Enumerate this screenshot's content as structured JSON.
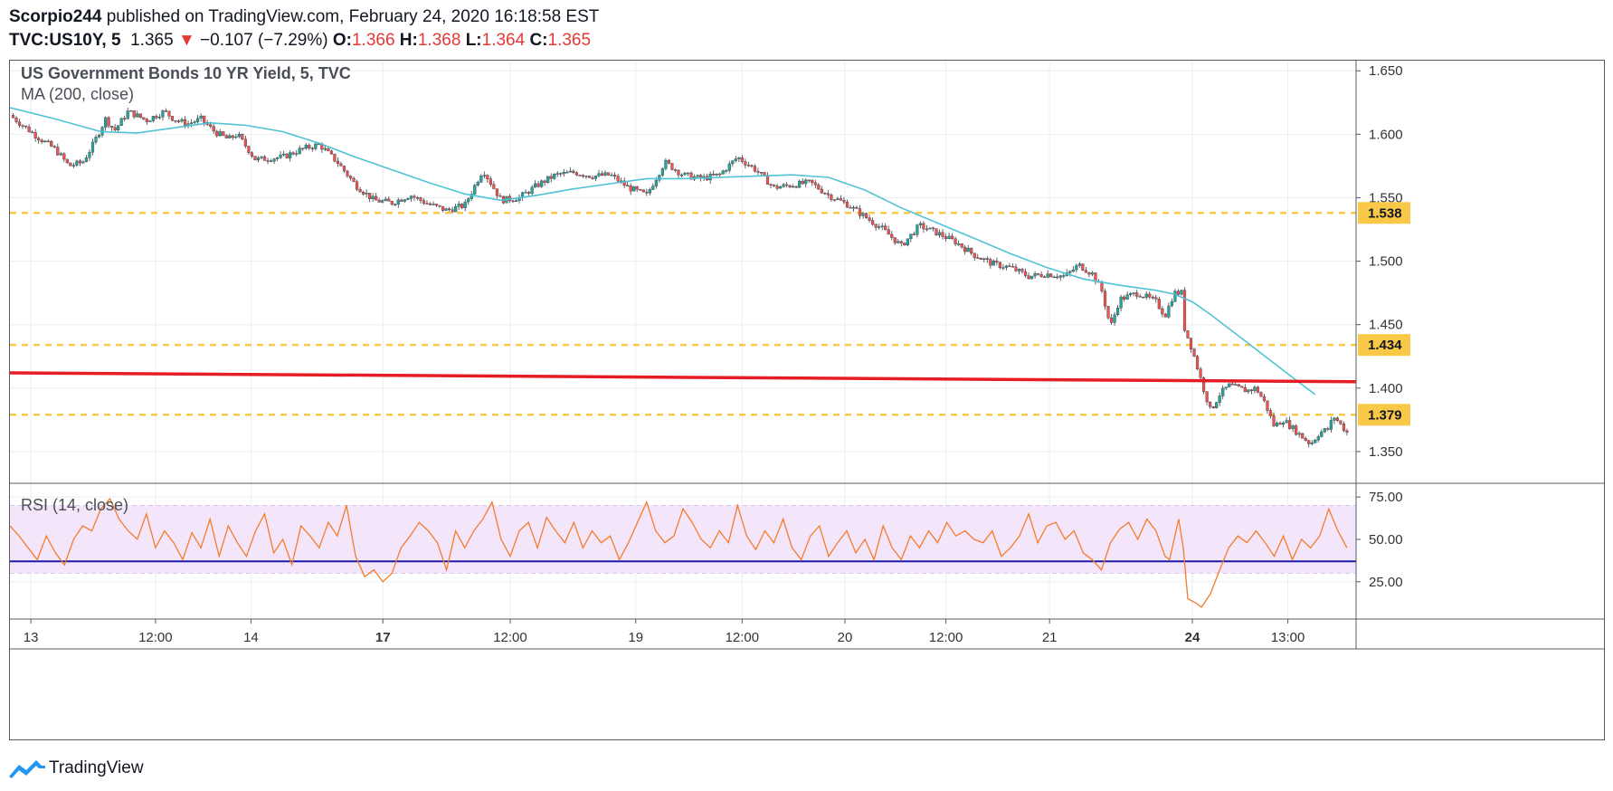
{
  "header": {
    "author": "Scorpio244",
    "published_text": "published on TradingView.com, February 24, 2020 16:18:58 EST",
    "symbol": "TVC:US10Y, 5",
    "last": "1.365",
    "change_arrow": "▼",
    "change": "−0.107 (−7.29%)",
    "open_label": "O:",
    "open": "1.366",
    "high_label": "H:",
    "high": "1.368",
    "low_label": "L:",
    "low": "1.364",
    "close_label": "C:",
    "close": "1.365"
  },
  "footer": {
    "brand": "TradingView",
    "logo_icon": "tradingview-logo-icon"
  },
  "colors": {
    "ma": "#4fc3d6",
    "up": "#26a69a",
    "down": "#ef5350",
    "support": "#f9c846",
    "trendline": "#e51c23",
    "rsi": "#f57c2a",
    "rsi_mid": "#1e1aa8",
    "rsi_band": "#f3e6fb",
    "grid": "#eceef2"
  },
  "chart_data": [
    {
      "type": "line",
      "title": "US Government Bonds 10 YR Yield, 5, TVC",
      "indicator": "MA (200, close)",
      "x_ticks": [
        "13",
        "12:00",
        "14",
        "17",
        "12:00",
        "19",
        "12:00",
        "20",
        "12:00",
        "21",
        "24",
        "13:00"
      ],
      "bold_ticks": [
        "17",
        "24"
      ],
      "y_ticks": [
        "1.350",
        "1.400",
        "1.450",
        "1.500",
        "1.550",
        "1.600",
        "1.650"
      ],
      "ylim": [
        1.325,
        1.658
      ],
      "price_path": [
        [
          0,
          1.615
        ],
        [
          3,
          1.598
        ],
        [
          5,
          1.588
        ],
        [
          6.5,
          1.575
        ],
        [
          8,
          1.578
        ],
        [
          9,
          1.59
        ],
        [
          10.5,
          1.612
        ],
        [
          11.5,
          1.603
        ],
        [
          13,
          1.618
        ],
        [
          15,
          1.611
        ],
        [
          17,
          1.618
        ],
        [
          18,
          1.612
        ],
        [
          19.5,
          1.608
        ],
        [
          21,
          1.612
        ],
        [
          22.5,
          1.602
        ],
        [
          24,
          1.596
        ],
        [
          25,
          1.6
        ],
        [
          27,
          1.58
        ],
        [
          30,
          1.582
        ],
        [
          32,
          1.588
        ],
        [
          34,
          1.592
        ],
        [
          36,
          1.578
        ],
        [
          38,
          1.56
        ],
        [
          40,
          1.548
        ],
        [
          42,
          1.546
        ],
        [
          44,
          1.552
        ],
        [
          46,
          1.545
        ],
        [
          48,
          1.54
        ],
        [
          50,
          1.544
        ],
        [
          52,
          1.572
        ],
        [
          54,
          1.548
        ],
        [
          56,
          1.55
        ],
        [
          58,
          1.56
        ],
        [
          60,
          1.568
        ],
        [
          62,
          1.57
        ],
        [
          64,
          1.567
        ],
        [
          66,
          1.568
        ],
        [
          68,
          1.558
        ],
        [
          70,
          1.552
        ],
        [
          72,
          1.578
        ],
        [
          74,
          1.568
        ],
        [
          76,
          1.565
        ],
        [
          78,
          1.568
        ],
        [
          80,
          1.582
        ],
        [
          82,
          1.572
        ],
        [
          84,
          1.558
        ],
        [
          86,
          1.56
        ],
        [
          88,
          1.562
        ],
        [
          90,
          1.552
        ],
        [
          92,
          1.545
        ],
        [
          94,
          1.535
        ],
        [
          96,
          1.525
        ],
        [
          98,
          1.512
        ],
        [
          100,
          1.528
        ],
        [
          102,
          1.522
        ],
        [
          104,
          1.515
        ],
        [
          106,
          1.505
        ],
        [
          108,
          1.498
        ],
        [
          110,
          1.495
        ],
        [
          112,
          1.488
        ],
        [
          114,
          1.49
        ],
        [
          116,
          1.488
        ],
        [
          117.5,
          1.497
        ],
        [
          119,
          1.49
        ],
        [
          120,
          1.478
        ],
        [
          121,
          1.448
        ],
        [
          122,
          1.47
        ],
        [
          124,
          1.475
        ],
        [
          126,
          1.468
        ],
        [
          127,
          1.457
        ],
        [
          128,
          1.475
        ],
        [
          128.9,
          1.475
        ],
        [
          129,
          1.45
        ],
        [
          130,
          1.43
        ],
        [
          131,
          1.405
        ],
        [
          132,
          1.382
        ],
        [
          133,
          1.395
        ],
        [
          134,
          1.402
        ],
        [
          136,
          1.398
        ],
        [
          137,
          1.4
        ],
        [
          138,
          1.388
        ],
        [
          139,
          1.37
        ],
        [
          140,
          1.375
        ],
        [
          142,
          1.362
        ],
        [
          143,
          1.356
        ],
        [
          144,
          1.365
        ],
        [
          145,
          1.368
        ],
        [
          145.5,
          1.378
        ],
        [
          146,
          1.374
        ],
        [
          147,
          1.365
        ]
      ],
      "ma_path": [
        [
          0,
          1.621
        ],
        [
          5,
          1.612
        ],
        [
          10,
          1.602
        ],
        [
          14,
          1.601
        ],
        [
          18,
          1.605
        ],
        [
          22,
          1.609
        ],
        [
          26,
          1.607
        ],
        [
          30,
          1.602
        ],
        [
          34,
          1.593
        ],
        [
          38,
          1.582
        ],
        [
          42,
          1.572
        ],
        [
          46,
          1.562
        ],
        [
          50,
          1.553
        ],
        [
          54,
          1.548
        ],
        [
          58,
          1.552
        ],
        [
          62,
          1.557
        ],
        [
          66,
          1.561
        ],
        [
          70,
          1.565
        ],
        [
          74,
          1.565
        ],
        [
          78,
          1.566
        ],
        [
          82,
          1.567
        ],
        [
          86,
          1.568
        ],
        [
          90,
          1.566
        ],
        [
          94,
          1.556
        ],
        [
          98,
          1.542
        ],
        [
          102,
          1.53
        ],
        [
          106,
          1.518
        ],
        [
          110,
          1.506
        ],
        [
          114,
          1.495
        ],
        [
          118,
          1.486
        ],
        [
          122,
          1.481
        ],
        [
          126,
          1.477
        ],
        [
          128,
          1.474
        ],
        [
          130,
          1.468
        ],
        [
          132,
          1.458
        ],
        [
          134,
          1.447
        ],
        [
          136,
          1.436
        ],
        [
          138,
          1.425
        ],
        [
          140,
          1.414
        ],
        [
          142,
          1.403
        ],
        [
          143.5,
          1.395
        ]
      ],
      "support_levels": [
        "1.538",
        "1.434",
        "1.379"
      ],
      "trendline": [
        [
          0,
          1.412
        ],
        [
          148,
          1.405
        ]
      ]
    },
    {
      "type": "line",
      "title": "RSI (14, close)",
      "y_ticks": [
        "25.00",
        "50.00",
        "75.00"
      ],
      "ylim": [
        3,
        82
      ],
      "band": [
        30,
        70
      ],
      "midline": 37,
      "rsi_path": [
        [
          0,
          58
        ],
        [
          1,
          52
        ],
        [
          2,
          45
        ],
        [
          3,
          38
        ],
        [
          4,
          52
        ],
        [
          5,
          42
        ],
        [
          6,
          35
        ],
        [
          7,
          50
        ],
        [
          8,
          58
        ],
        [
          9,
          55
        ],
        [
          10,
          68
        ],
        [
          11,
          74
        ],
        [
          12,
          62
        ],
        [
          13,
          55
        ],
        [
          14,
          50
        ],
        [
          15,
          65
        ],
        [
          16,
          45
        ],
        [
          17,
          55
        ],
        [
          18,
          48
        ],
        [
          19,
          38
        ],
        [
          20,
          54
        ],
        [
          21,
          45
        ],
        [
          22,
          62
        ],
        [
          23,
          40
        ],
        [
          24,
          58
        ],
        [
          25,
          48
        ],
        [
          26,
          40
        ],
        [
          27,
          55
        ],
        [
          28,
          65
        ],
        [
          29,
          42
        ],
        [
          30,
          50
        ],
        [
          31,
          35
        ],
        [
          32,
          58
        ],
        [
          33,
          52
        ],
        [
          34,
          45
        ],
        [
          35,
          60
        ],
        [
          36,
          52
        ],
        [
          37,
          70
        ],
        [
          38,
          40
        ],
        [
          39,
          28
        ],
        [
          40,
          32
        ],
        [
          41,
          25
        ],
        [
          42,
          30
        ],
        [
          43,
          45
        ],
        [
          44,
          52
        ],
        [
          45,
          60
        ],
        [
          46,
          55
        ],
        [
          47,
          48
        ],
        [
          48,
          32
        ],
        [
          49,
          55
        ],
        [
          50,
          45
        ],
        [
          51,
          55
        ],
        [
          52,
          62
        ],
        [
          53,
          72
        ],
        [
          54,
          50
        ],
        [
          55,
          40
        ],
        [
          56,
          55
        ],
        [
          57,
          60
        ],
        [
          58,
          45
        ],
        [
          59,
          63
        ],
        [
          60,
          55
        ],
        [
          61,
          48
        ],
        [
          62,
          60
        ],
        [
          63,
          45
        ],
        [
          64,
          55
        ],
        [
          65,
          48
        ],
        [
          66,
          52
        ],
        [
          67,
          38
        ],
        [
          68,
          48
        ],
        [
          69,
          60
        ],
        [
          70,
          72
        ],
        [
          71,
          55
        ],
        [
          72,
          48
        ],
        [
          73,
          52
        ],
        [
          74,
          68
        ],
        [
          75,
          60
        ],
        [
          76,
          50
        ],
        [
          77,
          45
        ],
        [
          78,
          55
        ],
        [
          79,
          48
        ],
        [
          80,
          70
        ],
        [
          81,
          52
        ],
        [
          82,
          44
        ],
        [
          83,
          55
        ],
        [
          84,
          48
        ],
        [
          85,
          62
        ],
        [
          86,
          45
        ],
        [
          87,
          38
        ],
        [
          88,
          52
        ],
        [
          89,
          58
        ],
        [
          90,
          40
        ],
        [
          91,
          48
        ],
        [
          92,
          55
        ],
        [
          93,
          42
        ],
        [
          94,
          50
        ],
        [
          95,
          38
        ],
        [
          96,
          58
        ],
        [
          97,
          45
        ],
        [
          98,
          38
        ],
        [
          99,
          52
        ],
        [
          100,
          45
        ],
        [
          101,
          55
        ],
        [
          102,
          48
        ],
        [
          103,
          60
        ],
        [
          104,
          52
        ],
        [
          105,
          55
        ],
        [
          106,
          50
        ],
        [
          107,
          48
        ],
        [
          108,
          55
        ],
        [
          109,
          40
        ],
        [
          110,
          45
        ],
        [
          111,
          52
        ],
        [
          112,
          65
        ],
        [
          113,
          48
        ],
        [
          114,
          58
        ],
        [
          115,
          60
        ],
        [
          116,
          50
        ],
        [
          117,
          55
        ],
        [
          118,
          42
        ],
        [
          119,
          38
        ],
        [
          120,
          32
        ],
        [
          121,
          48
        ],
        [
          122,
          56
        ],
        [
          123,
          60
        ],
        [
          124,
          50
        ],
        [
          125,
          62
        ],
        [
          126,
          55
        ],
        [
          127,
          40
        ],
        [
          127.5,
          38
        ],
        [
          128.5,
          62
        ],
        [
          129,
          45
        ],
        [
          129.5,
          15
        ],
        [
          130.5,
          12
        ],
        [
          131,
          10
        ],
        [
          132,
          18
        ],
        [
          133,
          32
        ],
        [
          134,
          45
        ],
        [
          135,
          52
        ],
        [
          136,
          48
        ],
        [
          137,
          55
        ],
        [
          138,
          48
        ],
        [
          139,
          40
        ],
        [
          140,
          52
        ],
        [
          141,
          38
        ],
        [
          142,
          50
        ],
        [
          143,
          45
        ],
        [
          144,
          52
        ],
        [
          145,
          68
        ],
        [
          146,
          55
        ],
        [
          147,
          45
        ]
      ]
    }
  ]
}
